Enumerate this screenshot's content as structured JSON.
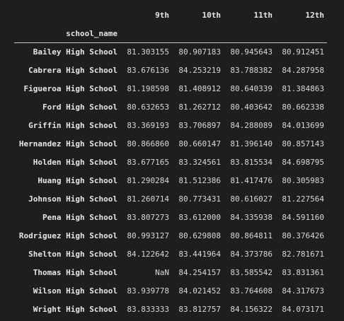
{
  "dataframe": {
    "columns": [
      "9th",
      "10th",
      "11th",
      "12th"
    ],
    "index_name": "school_name",
    "rows": [
      {
        "index": "Bailey High School",
        "values": [
          "81.303155",
          "80.907183",
          "80.945643",
          "80.912451"
        ]
      },
      {
        "index": "Cabrera High School",
        "values": [
          "83.676136",
          "84.253219",
          "83.788382",
          "84.287958"
        ]
      },
      {
        "index": "Figueroa High School",
        "values": [
          "81.198598",
          "81.408912",
          "80.640339",
          "81.384863"
        ]
      },
      {
        "index": "Ford High School",
        "values": [
          "80.632653",
          "81.262712",
          "80.403642",
          "80.662338"
        ]
      },
      {
        "index": "Griffin High School",
        "values": [
          "83.369193",
          "83.706897",
          "84.288089",
          "84.013699"
        ]
      },
      {
        "index": "Hernandez High School",
        "values": [
          "80.866860",
          "80.660147",
          "81.396140",
          "80.857143"
        ]
      },
      {
        "index": "Holden High School",
        "values": [
          "83.677165",
          "83.324561",
          "83.815534",
          "84.698795"
        ]
      },
      {
        "index": "Huang High School",
        "values": [
          "81.290284",
          "81.512386",
          "81.417476",
          "80.305983"
        ]
      },
      {
        "index": "Johnson High School",
        "values": [
          "81.260714",
          "80.773431",
          "80.616027",
          "81.227564"
        ]
      },
      {
        "index": "Pena High School",
        "values": [
          "83.807273",
          "83.612000",
          "84.335938",
          "84.591160"
        ]
      },
      {
        "index": "Rodriguez High School",
        "values": [
          "80.993127",
          "80.629808",
          "80.864811",
          "80.376426"
        ]
      },
      {
        "index": "Shelton High School",
        "values": [
          "84.122642",
          "83.441964",
          "84.373786",
          "82.781671"
        ]
      },
      {
        "index": "Thomas High School",
        "values": [
          "NaN",
          "84.254157",
          "83.585542",
          "83.831361"
        ]
      },
      {
        "index": "Wilson High School",
        "values": [
          "83.939778",
          "84.021452",
          "83.764608",
          "84.317673"
        ]
      },
      {
        "index": "Wright High School",
        "values": [
          "83.833333",
          "83.812757",
          "84.156322",
          "84.073171"
        ]
      }
    ]
  }
}
